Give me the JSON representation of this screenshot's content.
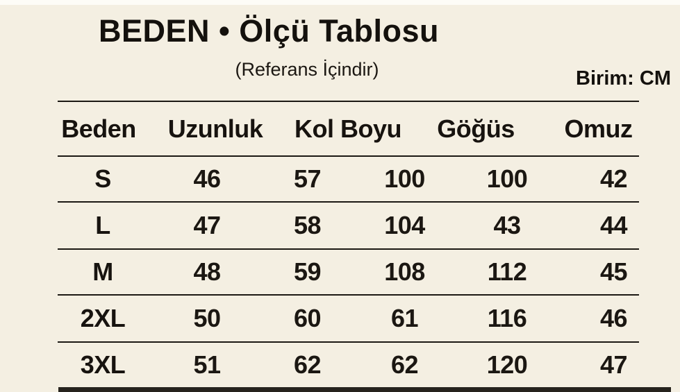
{
  "header": {
    "title": "BEDEN • Ölçü Tablosu",
    "subtitle": "(Referans İçindir)",
    "unit_label": "Birim: CM"
  },
  "table": {
    "headers": [
      "Beden",
      "Uzunluk",
      "Kol Boyu",
      "Göğüs",
      "Omuz"
    ],
    "note": "Kol Boyu header spans two value columns",
    "rows": [
      {
        "size": "S",
        "values": [
          "46",
          "57",
          "100",
          "100",
          "42"
        ]
      },
      {
        "size": "L",
        "values": [
          "47",
          "58",
          "104",
          "43",
          "44"
        ]
      },
      {
        "size": "M",
        "values": [
          "48",
          "59",
          "108",
          "112",
          "45"
        ]
      },
      {
        "size": "2XL",
        "values": [
          "50",
          "60",
          "61",
          "116",
          "46"
        ]
      },
      {
        "size": "3XL",
        "values": [
          "51",
          "62",
          "62",
          "120",
          "47"
        ]
      }
    ]
  },
  "colors": {
    "background": "#f4efe2",
    "top_strip": "#fdfcf7",
    "text": "#16120e",
    "rule": "#1b1813",
    "bottom_bar": "#26231d"
  }
}
